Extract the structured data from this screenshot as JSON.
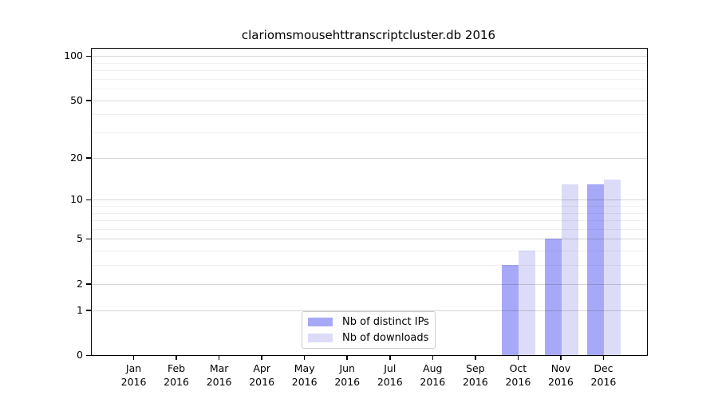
{
  "chart_data": {
    "type": "bar",
    "title": "clariomsmousehttranscriptcluster.db 2016",
    "scale": "log1p",
    "grid": "horizontal",
    "legend_position": "bottom-center",
    "categories": [
      "Jan",
      "Feb",
      "Mar",
      "Apr",
      "May",
      "Jun",
      "Jul",
      "Aug",
      "Sep",
      "Oct",
      "Nov",
      "Dec"
    ],
    "year_label": "2016",
    "series": [
      {
        "name": "Nb of distinct IPs",
        "color": "#a8a8f8",
        "values": [
          0,
          0,
          0,
          0,
          0,
          0,
          0,
          0,
          0,
          3,
          5,
          13
        ]
      },
      {
        "name": "Nb of downloads",
        "color": "#dcdcf8",
        "values": [
          0,
          0,
          0,
          0,
          0,
          0,
          0,
          0,
          0,
          4,
          13,
          14
        ]
      }
    ],
    "y_axis": {
      "tick_values": [
        0,
        1,
        2,
        5,
        10,
        20,
        50,
        100
      ],
      "tick_labels": [
        "0",
        "1",
        "2",
        "5",
        "10",
        "20",
        "50",
        "100"
      ],
      "minor_gridline_values": [
        3,
        4,
        6,
        7,
        8,
        9,
        30,
        40,
        60,
        70,
        80,
        90
      ],
      "major_gridline_values": [
        1,
        2,
        5,
        10,
        20,
        50,
        100
      ],
      "ymin": 0,
      "ymax": 112
    },
    "colors": {
      "distinct_ips_bar": "#a8a8f8",
      "downloads_bar": "#dcdcf8",
      "spine": "#000000",
      "legend_border": "#cccccc"
    }
  }
}
